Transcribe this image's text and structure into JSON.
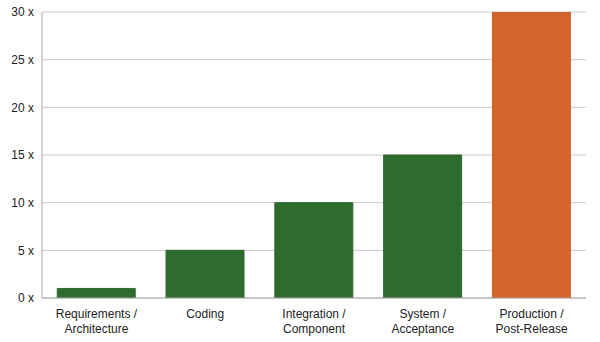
{
  "chart_data": {
    "type": "bar",
    "categories": [
      "Requirements / Architecture",
      "Coding",
      "Integration / Component",
      "System / Acceptance",
      "Production / Post-Release"
    ],
    "values": [
      1,
      5,
      10,
      15,
      30
    ],
    "colors": [
      "#2e6b2f",
      "#2e6b2f",
      "#2e6b2f",
      "#2e6b2f",
      "#d2642c"
    ],
    "ylim": [
      0,
      30
    ],
    "yticks": [
      {
        "value": 0,
        "label": "0 x"
      },
      {
        "value": 5,
        "label": "5 x"
      },
      {
        "value": 10,
        "label": "10 x"
      },
      {
        "value": 15,
        "label": "15 x"
      },
      {
        "value": 20,
        "label": "20 x"
      },
      {
        "value": 25,
        "label": "25 x"
      },
      {
        "value": 30,
        "label": "30 x"
      }
    ],
    "grid": true
  }
}
